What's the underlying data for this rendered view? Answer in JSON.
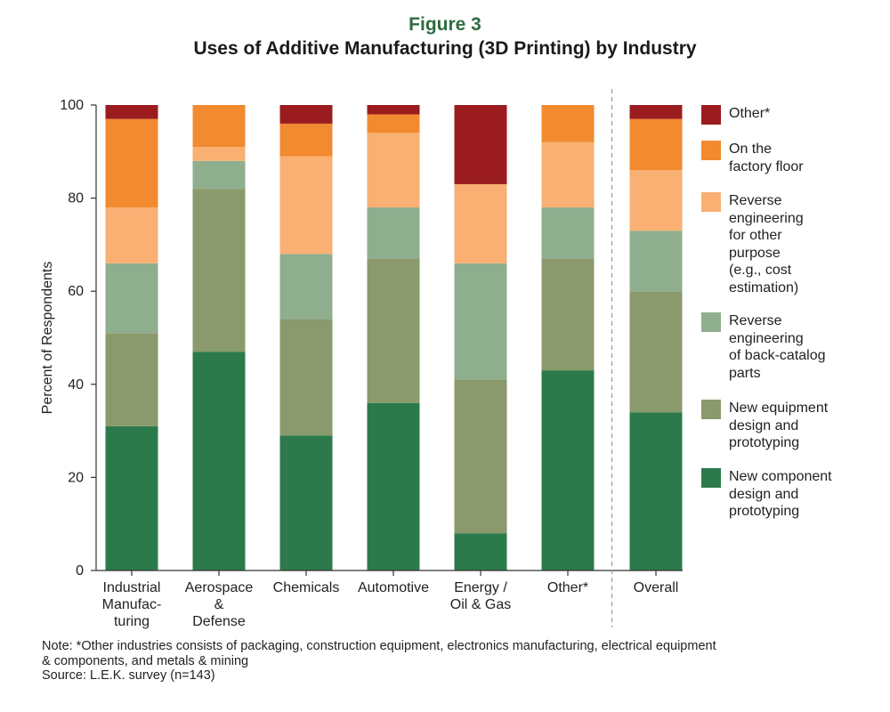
{
  "figure_label": "Figure 3",
  "title": "Uses of Additive Manufacturing (3D Printing) by Industry",
  "note_lines": [
    "Note: *Other industries consists of packaging, construction equipment, electronics manufacturing, electrical equipment",
    "& components, and metals & mining"
  ],
  "source": "Source: L.E.K. survey (n=143)",
  "chart_data": {
    "type": "bar",
    "stacked": true,
    "ylabel": "Percent of Respondents",
    "xlabel": "",
    "ylim": [
      0,
      100
    ],
    "yticks": [
      0,
      20,
      40,
      60,
      80,
      100
    ],
    "grid": false,
    "legend_position": "right",
    "separator_before": "Overall",
    "categories": [
      "Industrial\nManufac-\nturing",
      "Aerospace\n&\nDefense",
      "Chemicals",
      "Automotive",
      "Energy /\nOil & Gas",
      "Other*",
      "Overall"
    ],
    "series": [
      {
        "name": "New component\ndesign and\nprototyping",
        "color": "#2c7a4b",
        "values": [
          31,
          47,
          29,
          36,
          8,
          43,
          34
        ]
      },
      {
        "name": "New equipment\ndesign and\nprototyping",
        "color": "#8a9a6c",
        "values": [
          20,
          35,
          25,
          31,
          33,
          24,
          26
        ]
      },
      {
        "name": "Reverse\nengineering\nof back-catalog\nparts",
        "color": "#8fae8e",
        "values": [
          15,
          6,
          14,
          11,
          25,
          11,
          13
        ]
      },
      {
        "name": "Reverse\nengineering\nfor other\npurpose\n(e.g., cost\nestimation)",
        "color": "#f9b072",
        "values": [
          12,
          3,
          21,
          16,
          17,
          14,
          13
        ]
      },
      {
        "name": "On the\nfactory floor",
        "color": "#f28a30",
        "values": [
          19,
          9,
          7,
          4,
          0,
          8,
          11
        ]
      },
      {
        "name": "Other*",
        "color": "#9b1c1f",
        "values": [
          3,
          0,
          4,
          2,
          17,
          0,
          3
        ]
      }
    ]
  }
}
